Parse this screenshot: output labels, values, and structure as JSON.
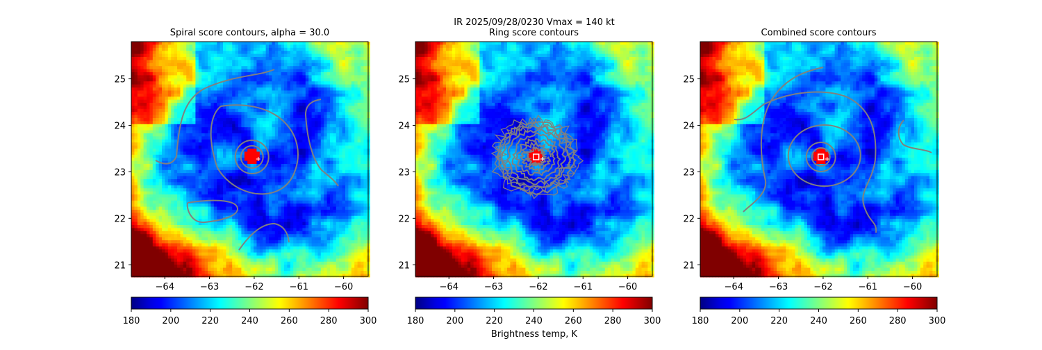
{
  "suptitle": {
    "line1": "IR  2025/09/28/0230    Vmax = 140 kt"
  },
  "colorbar": {
    "ticks": [
      "180",
      "200",
      "220",
      "240",
      "260",
      "280",
      "300"
    ],
    "label": "Brightness temp, K",
    "range": [
      180,
      300
    ],
    "colormap": "jet_r"
  },
  "chart_data": [
    {
      "type": "heatmap",
      "title": "Spiral score contours, alpha = 30.0",
      "xlabel": "",
      "ylabel": "",
      "xticks": [
        "−64",
        "−63",
        "−62",
        "−61",
        "−60"
      ],
      "yticks": [
        "21",
        "22",
        "23",
        "24",
        "25"
      ],
      "xlim": [
        -64.75,
        -59.45
      ],
      "ylim": [
        20.75,
        25.8
      ],
      "center": {
        "lon": -62.05,
        "lat": 23.32
      },
      "eye_temp_K": 285,
      "overlay": "spiral score contours",
      "contour_color": "#808080"
    },
    {
      "type": "heatmap",
      "title": "Ring score contours",
      "xlabel": "",
      "ylabel": "",
      "xticks": [
        "−64",
        "−63",
        "−62",
        "−61",
        "−60"
      ],
      "yticks": [
        "21",
        "22",
        "23",
        "24",
        "25"
      ],
      "xlim": [
        -64.75,
        -59.45
      ],
      "ylim": [
        20.75,
        25.8
      ],
      "center": {
        "lon": -62.05,
        "lat": 23.32
      },
      "eye_temp_K": 285,
      "overlay": "ring score contours",
      "marker": "white square",
      "contour_color": "#808080"
    },
    {
      "type": "heatmap",
      "title": "Combined score contours",
      "xlabel": "",
      "ylabel": "",
      "xticks": [
        "−64",
        "−63",
        "−62",
        "−61",
        "−60"
      ],
      "yticks": [
        "21",
        "22",
        "23",
        "24",
        "25"
      ],
      "xlim": [
        -64.75,
        -59.45
      ],
      "ylim": [
        20.75,
        25.8
      ],
      "center": {
        "lon": -62.05,
        "lat": 23.32
      },
      "eye_temp_K": 285,
      "overlay": "combined score contours",
      "marker": "white square",
      "contour_color": "#808080"
    }
  ]
}
